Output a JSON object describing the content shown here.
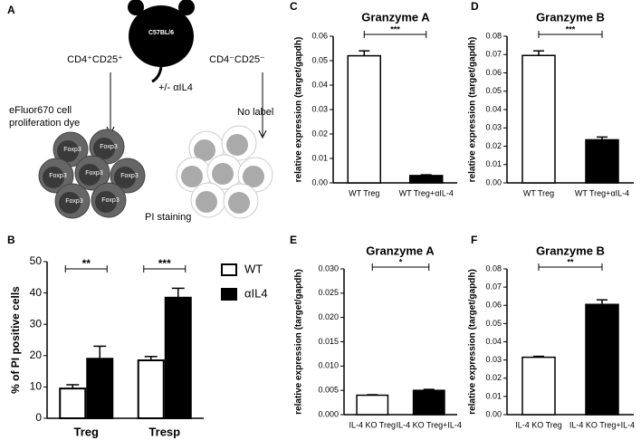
{
  "panel_a": {
    "panel": "A",
    "strain": "C57BL/6",
    "left_population": "CD4⁺CD25⁺",
    "right_population": "CD4⁻CD25⁻",
    "left_note": [
      "eFluor670 cell",
      "proliferation dye"
    ],
    "treatment": "+/- αIL4",
    "right_note": "No label",
    "cell_label": "Foxp3",
    "bottom_note": "PI staining"
  },
  "chart_data": [
    {
      "type": "bar",
      "panel": "B",
      "ylabel": "% of PI positive cells",
      "categories": [
        "Treg",
        "Tresp"
      ],
      "series": [
        {
          "name": "WT",
          "color": "#ffffff",
          "values": [
            9.5,
            18.5
          ],
          "errors": [
            1.2,
            1.2
          ]
        },
        {
          "name": "αIL4",
          "color": "#000000",
          "values": [
            19,
            38.5
          ],
          "errors": [
            4,
            3
          ]
        }
      ],
      "significance": [
        "**",
        "***"
      ],
      "ylim": [
        0,
        50
      ],
      "yticks": [
        0,
        10,
        20,
        30,
        40,
        50
      ]
    },
    {
      "type": "bar",
      "panel": "C",
      "title": "Granzyme A",
      "ylabel": "relative expression (target/gapdh)",
      "categories": [
        "WT Treg",
        "WT Treg+αIL-4"
      ],
      "values": [
        0.052,
        0.003
      ],
      "errors": [
        0.002,
        0.0003
      ],
      "colors": [
        "#ffffff",
        "#000000"
      ],
      "significance": "***",
      "ylim": [
        0,
        0.06
      ],
      "yticks": [
        {
          "value": 0,
          "label": "0.00"
        },
        0.01,
        0.02,
        0.03,
        0.04,
        0.05,
        0.06
      ]
    },
    {
      "type": "bar",
      "panel": "D",
      "title": "Granzyme B",
      "ylabel": "relative expression (target/gapdh)",
      "categories": [
        "WT Treg",
        "WT Treg+αIL-4"
      ],
      "values": [
        0.0695,
        0.0235
      ],
      "errors": [
        0.0025,
        0.0015
      ],
      "colors": [
        "#ffffff",
        "#000000"
      ],
      "significance": "***",
      "ylim": [
        0,
        0.08
      ],
      "yticks": [
        {
          "value": 0,
          "label": "0.00"
        },
        0.01,
        0.02,
        0.03,
        0.04,
        0.05,
        0.06,
        0.07,
        0.08
      ]
    },
    {
      "type": "bar",
      "panel": "E",
      "title": "Granzyme A",
      "ylabel": "relative expression (target/gapdh)",
      "categories": [
        "IL-4 KO Treg",
        "IL-4 KO Treg+IL-4"
      ],
      "values": [
        0.004,
        0.005
      ],
      "errors": [
        0.0001,
        0.0002
      ],
      "colors": [
        "#ffffff",
        "#000000"
      ],
      "significance": "*",
      "ylim": [
        0,
        0.03
      ],
      "yticks": [
        {
          "value": 0,
          "label": "0.000"
        },
        0.005,
        {
          "value": 0.01,
          "label": "0.010"
        },
        0.015,
        {
          "value": 0.02,
          "label": "0.020"
        },
        0.025,
        {
          "value": 0.03,
          "label": "0.030"
        }
      ]
    },
    {
      "type": "bar",
      "panel": "F",
      "title": "Granzyme B",
      "ylabel": "relative expression (target/gapdh)",
      "categories": [
        "IL-4 KO Treg",
        "IL-4 KO Treg+IL-4"
      ],
      "values": [
        0.0315,
        0.0605
      ],
      "errors": [
        0.0005,
        0.0025
      ],
      "colors": [
        "#ffffff",
        "#000000"
      ],
      "significance": "**",
      "ylim": [
        0,
        0.08
      ],
      "yticks": [
        {
          "value": 0,
          "label": "0.00"
        },
        0.01,
        0.02,
        0.03,
        0.04,
        0.05,
        0.06,
        0.07,
        0.08
      ]
    }
  ]
}
